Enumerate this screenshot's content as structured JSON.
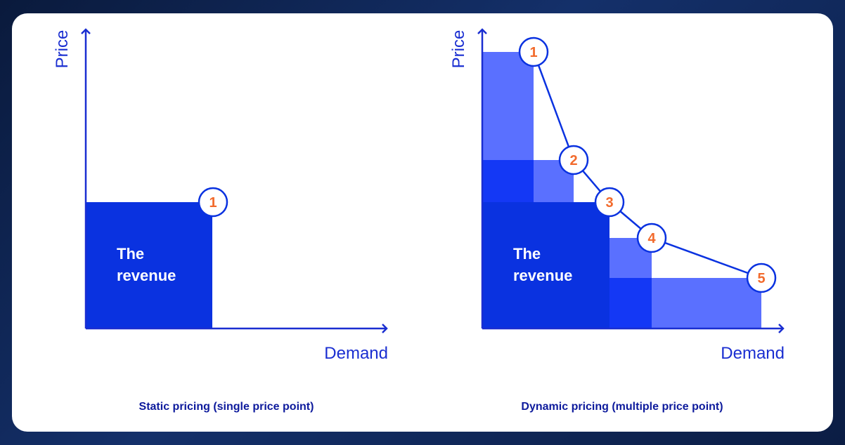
{
  "static_panel": {
    "y_axis_label": "Price",
    "x_axis_label": "Demand",
    "revenue_label_line1": "The",
    "revenue_label_line2": "revenue",
    "price_point": "1",
    "caption": "Static pricing (single price point)"
  },
  "dynamic_panel": {
    "y_axis_label": "Price",
    "x_axis_label": "Demand",
    "revenue_label_line1": "The",
    "revenue_label_line2": "revenue",
    "price_points": [
      "1",
      "2",
      "3",
      "4",
      "5"
    ],
    "caption": "Dynamic pricing (multiple price point)"
  },
  "colors": {
    "axis": "#1a2ed1",
    "revenue_block": "#0a32e0",
    "extra_revenue_block": "#5a70ff",
    "overlap_block": "#1438f5",
    "marker_text": "#f26a2c",
    "caption": "#0d1a9c"
  }
}
